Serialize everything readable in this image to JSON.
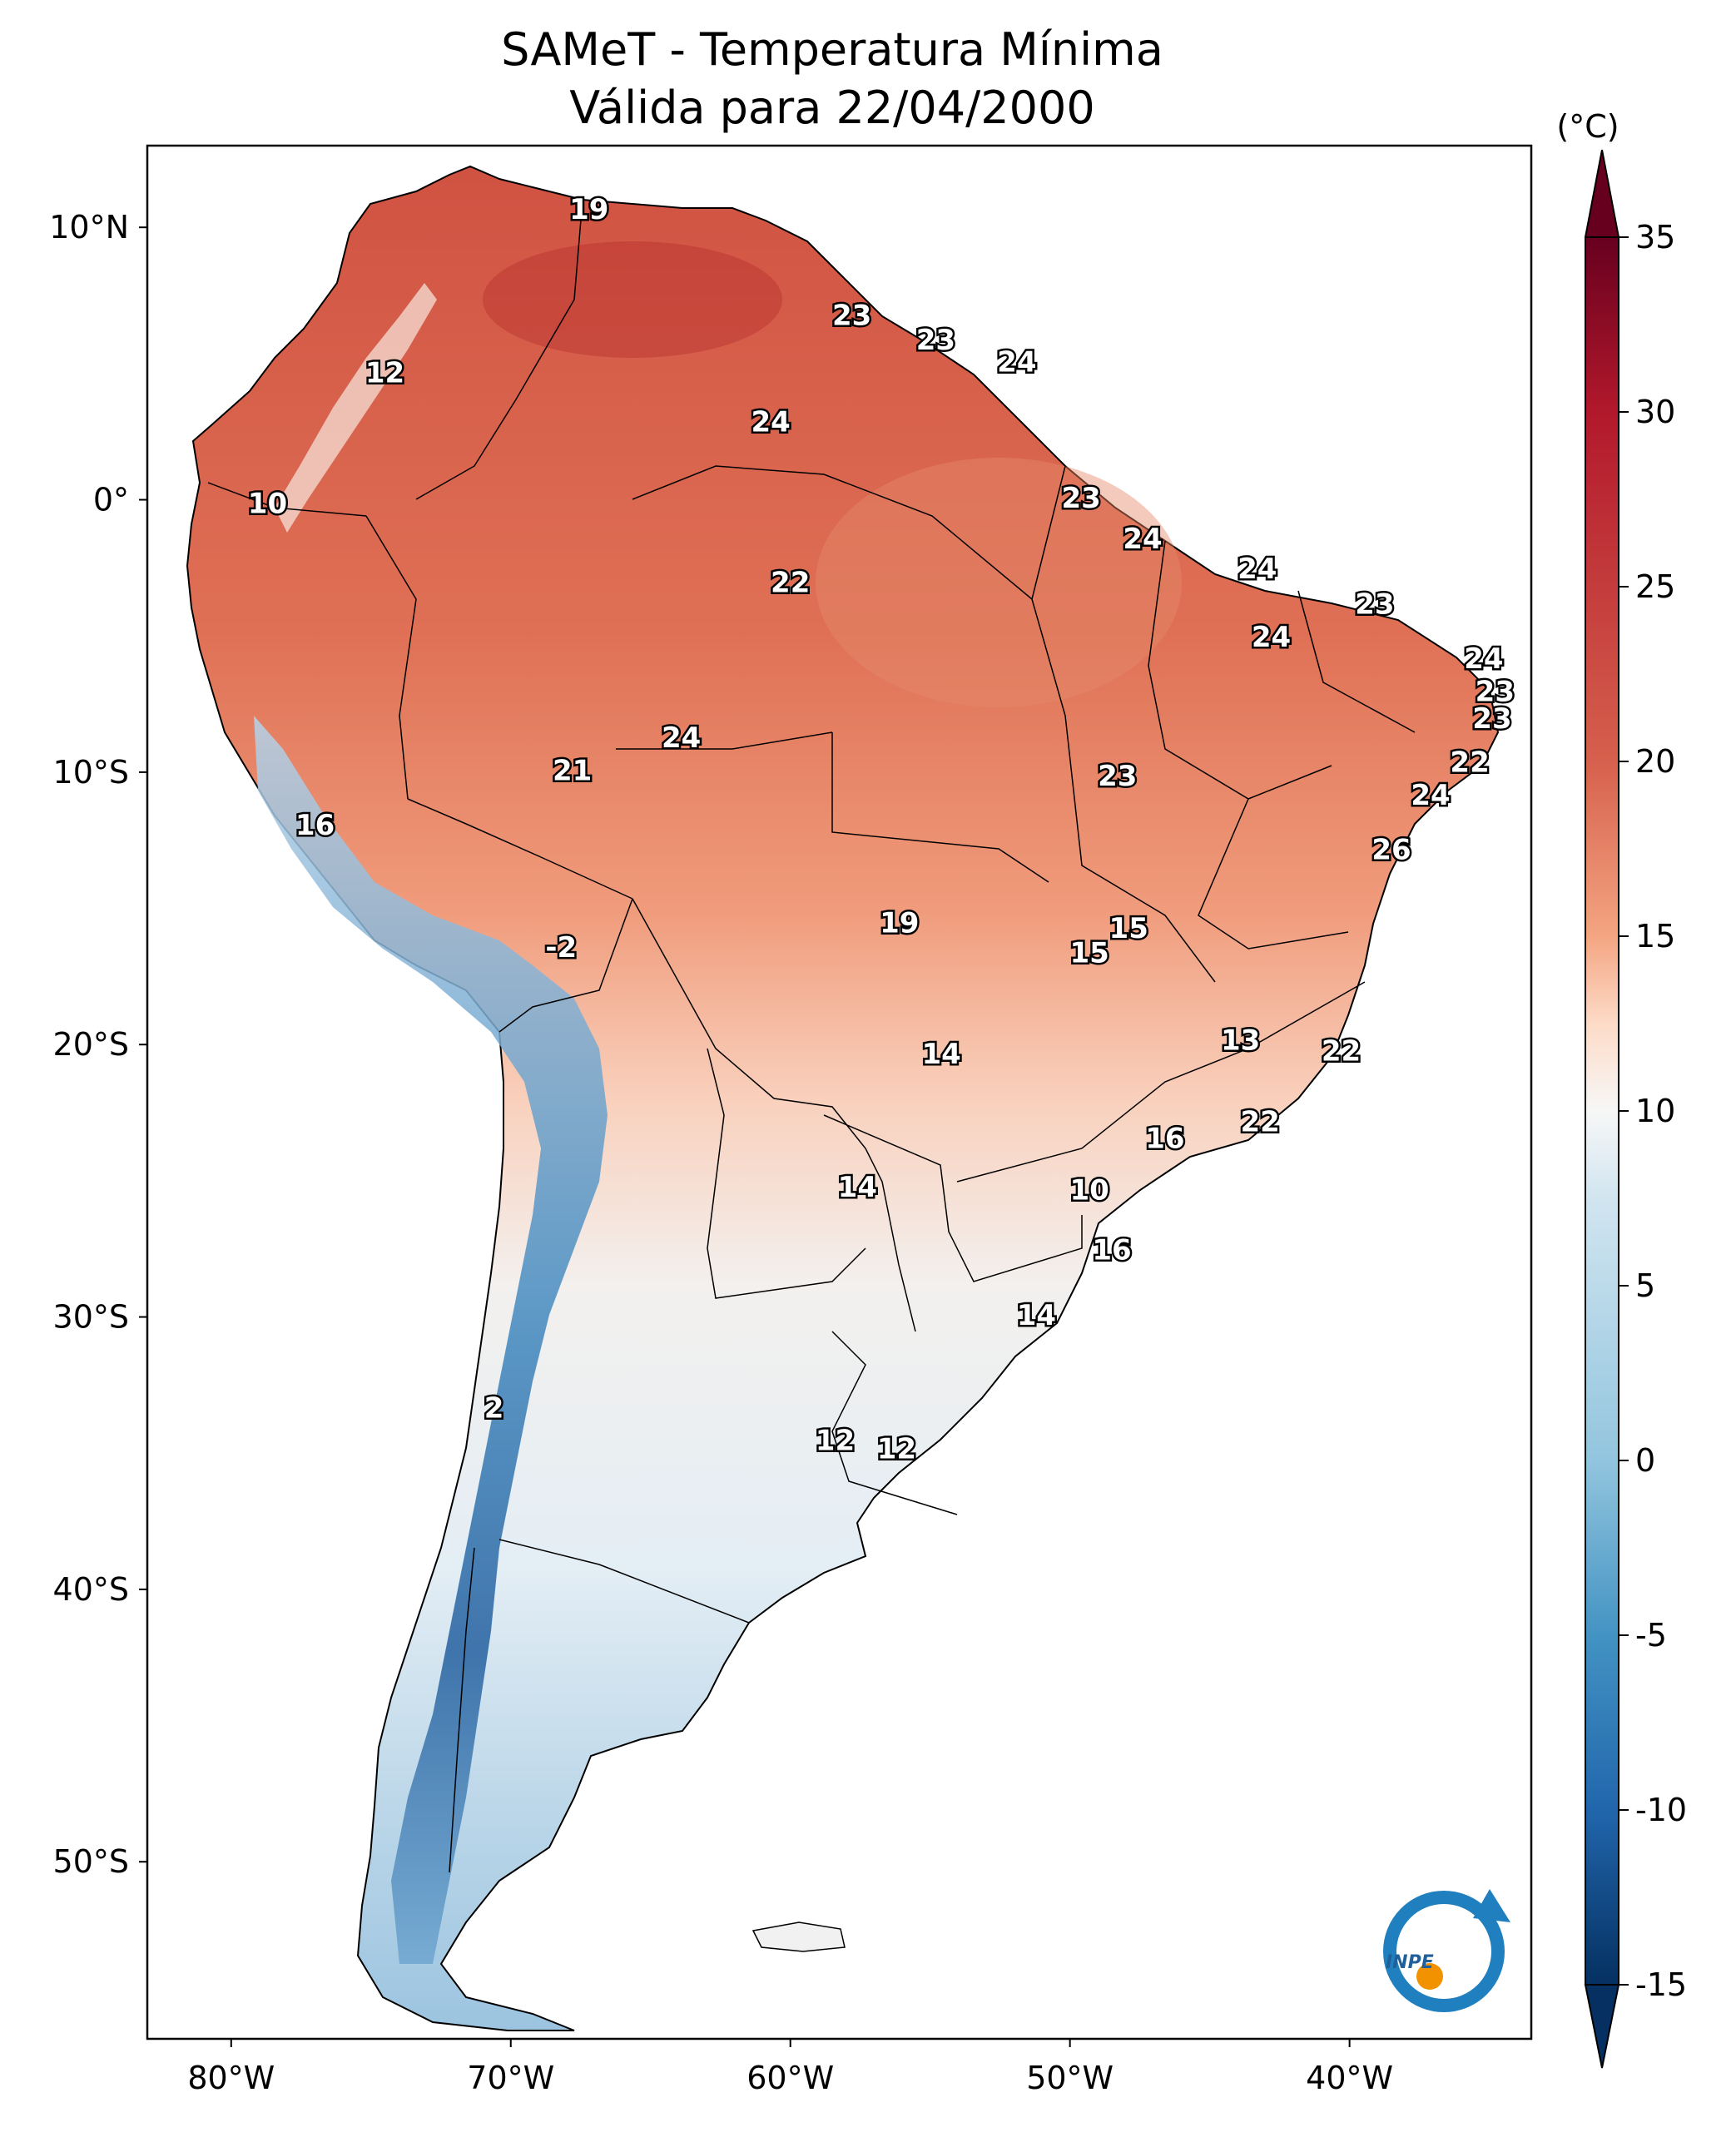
{
  "title": {
    "line1": "SAMeT - Temperatura Mínima",
    "line2": "Válida para 22/04/2000"
  },
  "map": {
    "lat_ticks": [
      {
        "label": "10°N",
        "lat": 10
      },
      {
        "label": "0°",
        "lat": 0
      },
      {
        "label": "10°S",
        "lat": -10
      },
      {
        "label": "20°S",
        "lat": -20
      },
      {
        "label": "30°S",
        "lat": -30
      },
      {
        "label": "40°S",
        "lat": -40
      },
      {
        "label": "50°S",
        "lat": -50
      }
    ],
    "lon_ticks": [
      {
        "label": "80°W",
        "lon": -80
      },
      {
        "label": "70°W",
        "lon": -70
      },
      {
        "label": "60°W",
        "lon": -60
      },
      {
        "label": "50°W",
        "lon": -50
      },
      {
        "label": "40°W",
        "lon": -40
      }
    ],
    "stations": [
      {
        "v": "19",
        "lon": -67.2,
        "lat": 10.6
      },
      {
        "v": "12",
        "lon": -74.5,
        "lat": 4.6
      },
      {
        "v": "23",
        "lon": -57.8,
        "lat": 6.7
      },
      {
        "v": "23",
        "lon": -54.8,
        "lat": 5.8
      },
      {
        "v": "24",
        "lon": -51.9,
        "lat": 5.0
      },
      {
        "v": "24",
        "lon": -60.7,
        "lat": 2.8
      },
      {
        "v": "10",
        "lon": -78.7,
        "lat": -0.2
      },
      {
        "v": "23",
        "lon": -49.6,
        "lat": 0.0
      },
      {
        "v": "24",
        "lon": -47.4,
        "lat": -1.5
      },
      {
        "v": "24",
        "lon": -43.3,
        "lat": -2.6
      },
      {
        "v": "22",
        "lon": -60.0,
        "lat": -3.1
      },
      {
        "v": "23",
        "lon": -39.1,
        "lat": -3.9
      },
      {
        "v": "24",
        "lon": -42.8,
        "lat": -5.1
      },
      {
        "v": "24",
        "lon": -35.2,
        "lat": -5.9
      },
      {
        "v": "23",
        "lon": -34.8,
        "lat": -7.1
      },
      {
        "v": "23",
        "lon": -34.9,
        "lat": -8.1
      },
      {
        "v": "24",
        "lon": -63.9,
        "lat": -8.8
      },
      {
        "v": "21",
        "lon": -67.8,
        "lat": -10.0
      },
      {
        "v": "22",
        "lon": -35.7,
        "lat": -9.7
      },
      {
        "v": "23",
        "lon": -48.3,
        "lat": -10.2
      },
      {
        "v": "24",
        "lon": -37.1,
        "lat": -10.9
      },
      {
        "v": "16",
        "lon": -77.0,
        "lat": -12.0
      },
      {
        "v": "26",
        "lon": -38.5,
        "lat": -12.9
      },
      {
        "v": "15",
        "lon": -47.9,
        "lat": -15.8
      },
      {
        "v": "19",
        "lon": -56.1,
        "lat": -15.6
      },
      {
        "v": "15",
        "lon": -49.3,
        "lat": -16.7
      },
      {
        "v": "-2",
        "lon": -68.2,
        "lat": -16.5
      },
      {
        "v": "13",
        "lon": -43.9,
        "lat": -19.9
      },
      {
        "v": "14",
        "lon": -54.6,
        "lat": -20.4
      },
      {
        "v": "22",
        "lon": -40.3,
        "lat": -20.3
      },
      {
        "v": "22",
        "lon": -43.2,
        "lat": -22.9
      },
      {
        "v": "16",
        "lon": -46.6,
        "lat": -23.5
      },
      {
        "v": "14",
        "lon": -57.6,
        "lat": -25.3
      },
      {
        "v": "10",
        "lon": -49.3,
        "lat": -25.4
      },
      {
        "v": "16",
        "lon": -48.5,
        "lat": -27.6
      },
      {
        "v": "14",
        "lon": -51.2,
        "lat": -30.0
      },
      {
        "v": "2",
        "lon": -70.6,
        "lat": -33.4
      },
      {
        "v": "12",
        "lon": -58.4,
        "lat": -34.6
      },
      {
        "v": "12",
        "lon": -56.2,
        "lat": -34.9
      }
    ]
  },
  "colorbar": {
    "unit": "(°C)",
    "range": [
      -15,
      35
    ],
    "ticks": [
      "35",
      "30",
      "25",
      "20",
      "15",
      "10",
      "5",
      "0",
      "-5",
      "-10",
      "-15"
    ]
  },
  "logo": {
    "text": "INPE",
    "colors": {
      "blue": "#1f7fbf",
      "orange": "#f39200"
    }
  },
  "palette": {
    "dark_red": "#67001f",
    "red": "#d6604d",
    "light": "#fddbc7",
    "white": "#f7f7f7",
    "light_blue": "#d1e5f0",
    "blue": "#4393c3",
    "dark_blue": "#053061"
  }
}
